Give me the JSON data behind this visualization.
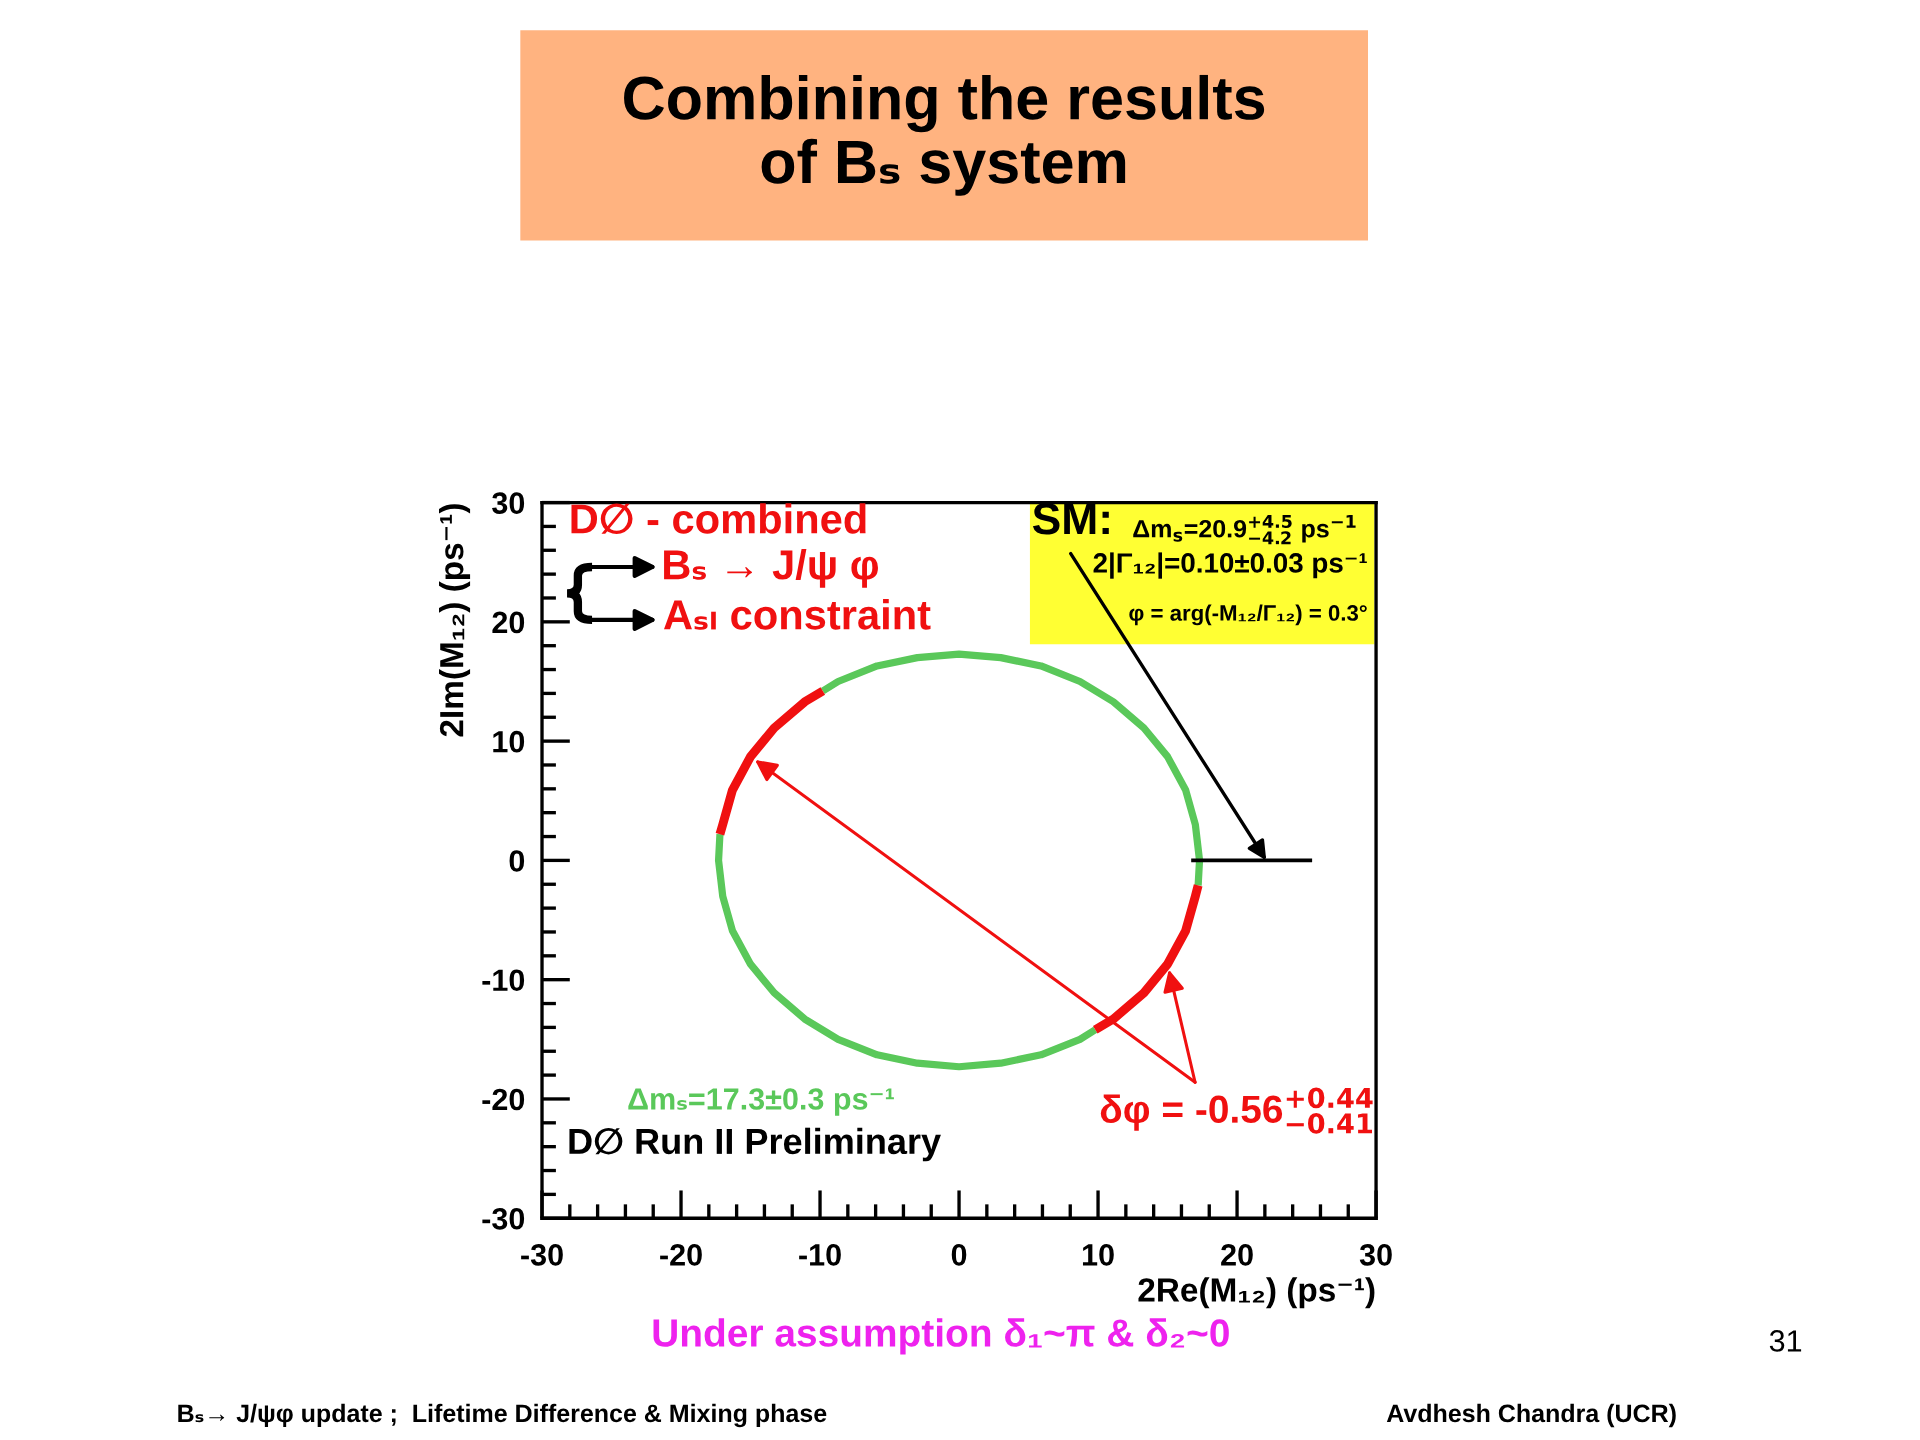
{
  "chart_data": {
    "type": "line",
    "title": "Combining the results of Bₛ system",
    "subtitle": "Under assumption δ₁~π & δ₂~0",
    "xlabel": "2Re(M₁₂) (ps⁻¹)",
    "ylabel": "2Im(M₁₂) (ps⁻¹)",
    "xlim": [
      -30,
      30
    ],
    "ylim": [
      -30,
      30
    ],
    "xticks": [
      -30,
      -20,
      -10,
      0,
      10,
      20,
      30
    ],
    "yticks": [
      -30,
      -20,
      -10,
      0,
      10,
      20,
      30
    ],
    "series": [
      {
        "name": "Δmₛ=17.3±0.3 ps⁻¹",
        "color": "#5ac85a",
        "x": [
          17.2,
          17.3,
          17.0,
          16.3,
          15.0,
          13.3,
          11.1,
          8.7,
          5.9,
          3.0,
          0,
          -3.0,
          -5.9,
          -8.7,
          -9.8,
          null,
          -17.2,
          -17.3,
          -17.0,
          -16.3,
          -15.0,
          -13.3,
          -11.1,
          -8.7,
          -5.9,
          -3.0,
          0,
          3.0,
          5.9,
          8.7,
          9.8
        ],
        "values": [
          -2.1,
          0,
          3.0,
          5.9,
          8.7,
          11.1,
          13.3,
          15.0,
          16.3,
          17.0,
          17.3,
          17.0,
          16.3,
          15.0,
          14.2,
          null,
          2.2,
          0,
          -3.0,
          -5.9,
          -8.7,
          -11.1,
          -13.3,
          -15.0,
          -16.3,
          -17.0,
          -17.3,
          -17.0,
          -16.3,
          -15.0,
          -14.2
        ]
      },
      {
        "name": "δφ = -0.56$^{+0.44}$$_{−0.41}$",
        "color": "#f01010",
        "x": [
          -9.8,
          -11.1,
          -13.3,
          -15.0,
          -16.3,
          -17.0,
          -17.2,
          null,
          9.8,
          11.1,
          13.3,
          15.0,
          16.3,
          17.0,
          17.2
        ],
        "values": [
          14.2,
          13.3,
          11.1,
          8.7,
          5.9,
          3.0,
          2.2,
          null,
          -14.2,
          -13.3,
          -11.1,
          -8.7,
          -5.9,
          -3.0,
          -2.1
        ]
      },
      {
        "color": "#000000",
        "x": [
          16.7,
          25.4
        ],
        "values": [
          0,
          0
        ]
      }
    ],
    "annotations": [
      "D∅ - combined",
      "Bₛ → J/ψ φ",
      "Aₛₗ constraint",
      {
        "text": "SM:",
        "x": 22.1,
        "y": 0
      },
      "Δm$_{s}$=20.9$^{+4.5}$$_{−4.2}$ ps$^{−1}$",
      "2|Γ₁₂|=0.10±0.03 ps⁻¹",
      "φ = arg(-M₁₂/Γ₁₂) = 0.3°",
      "D∅ Run II Preliminary",
      "Bₛ→ J/ψφ update ;  Lifetime Difference & Mixing phase",
      "Avdhesh Chandra (UCR)",
      "31"
    ]
  }
}
